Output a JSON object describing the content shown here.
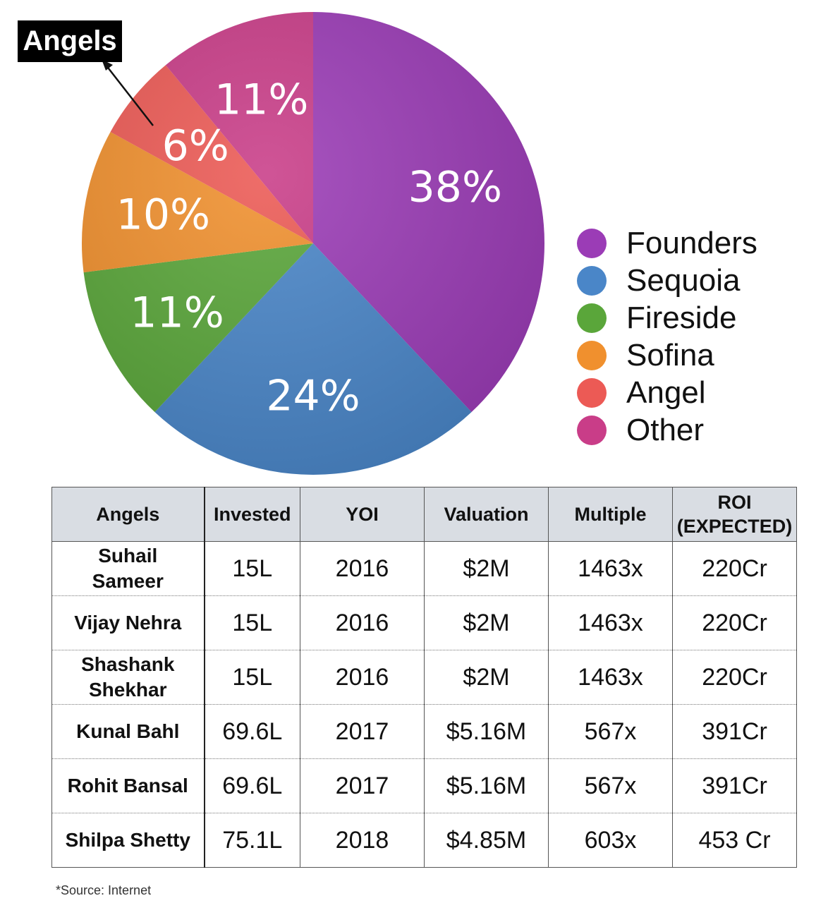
{
  "chart_data": {
    "type": "pie",
    "slices": [
      {
        "label": "Founders",
        "value": 38,
        "text": "38%",
        "color": "#9b3cb6"
      },
      {
        "label": "Sequoia",
        "value": 24,
        "text": "24%",
        "color": "#4a86c8"
      },
      {
        "label": "Fireside",
        "value": 11,
        "text": "11%",
        "color": "#5aa63a"
      },
      {
        "label": "Sofina",
        "value": 10,
        "text": "10%",
        "color": "#f0902e"
      },
      {
        "label": "Angel",
        "value": 6,
        "text": "6%",
        "color": "#ec5a55"
      },
      {
        "label": "Other",
        "value": 11,
        "text": "11%",
        "color": "#c93d88"
      }
    ],
    "annotation": "Angels",
    "legend_position": "right"
  },
  "table": {
    "headers": {
      "angels": "Angels",
      "invested": "Invested",
      "yoi": "YOI",
      "valuation": "Valuation",
      "multiple": "Multiple",
      "roi_line1": "ROI",
      "roi_line2": "(EXPECTED)"
    },
    "rows": [
      {
        "name1": "Suhail",
        "name2": "Sameer",
        "invested": "15L",
        "yoi": "2016",
        "valuation": "$2M",
        "multiple": "1463x",
        "roi": "220Cr"
      },
      {
        "name1": "Vijay Nehra",
        "name2": "",
        "invested": "15L",
        "yoi": "2016",
        "valuation": "$2M",
        "multiple": "1463x",
        "roi": "220Cr"
      },
      {
        "name1": "Shashank",
        "name2": "Shekhar",
        "invested": "15L",
        "yoi": "2016",
        "valuation": "$2M",
        "multiple": "1463x",
        "roi": "220Cr"
      },
      {
        "name1": "Kunal Bahl",
        "name2": "",
        "invested": "69.6L",
        "yoi": "2017",
        "valuation": "$5.16M",
        "multiple": "567x",
        "roi": "391Cr"
      },
      {
        "name1": "Rohit Bansal",
        "name2": "",
        "invested": "69.6L",
        "yoi": "2017",
        "valuation": "$5.16M",
        "multiple": "567x",
        "roi": "391Cr"
      },
      {
        "name1": "Shilpa Shetty",
        "name2": "",
        "invested": "75.1L",
        "yoi": "2018",
        "valuation": "$4.85M",
        "multiple": "603x",
        "roi": "453 Cr"
      }
    ]
  },
  "source": "*Source: Internet"
}
